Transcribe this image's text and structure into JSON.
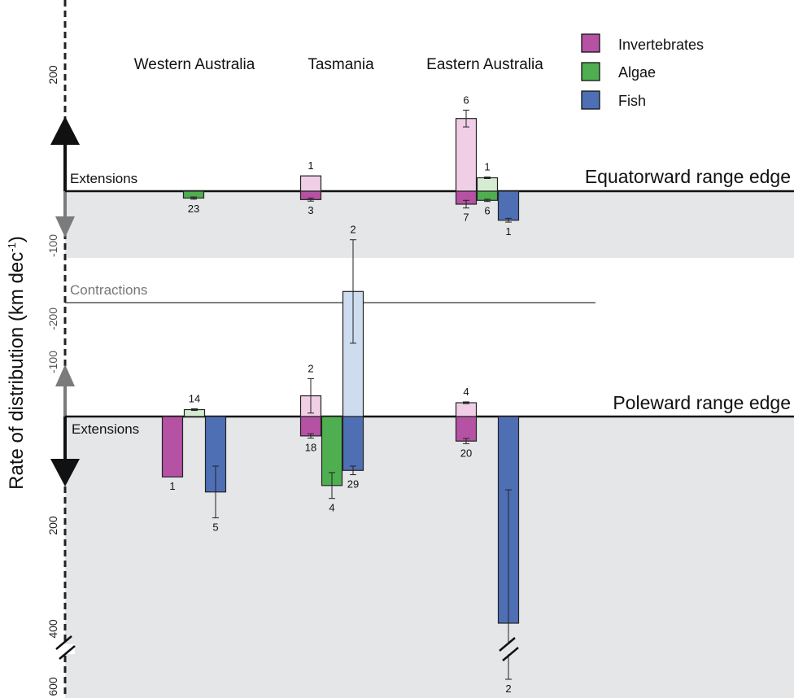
{
  "chart_data": {
    "type": "bar",
    "ylabel": "Rate of distribution (km dec",
    "ylabel_sup": "-1",
    "categories": [
      "Western Australia",
      "Tasmania",
      "Eastern Australia"
    ],
    "legend": [
      {
        "name": "Invertebrates",
        "color": "#b552a3"
      },
      {
        "name": "Algae",
        "color": "#4fae50"
      },
      {
        "name": "Fish",
        "color": "#4f6fb5"
      }
    ],
    "light_colors": {
      "Invertebrates": "#f0cfe6",
      "Algae": "#d6ecd2",
      "Fish": "#cddcef"
    },
    "panels": [
      {
        "name": "Equatorward range edge",
        "extension_label": "Extensions",
        "contraction_label": "Contractions",
        "y_ticks": [
          200,
          -100,
          -200
        ],
        "bars": [
          {
            "category": "Western Australia",
            "group": "Algae",
            "type": "contraction",
            "value": 18,
            "error": 3,
            "n": "23"
          },
          {
            "category": "Tasmania",
            "group": "Invertebrates",
            "type": "extension",
            "value": 40,
            "error": 0,
            "n": "1"
          },
          {
            "category": "Tasmania",
            "group": "Invertebrates",
            "type": "contraction",
            "value": 22,
            "error": 4,
            "n": "3"
          },
          {
            "category": "Eastern Australia",
            "group": "Invertebrates",
            "type": "extension",
            "value": 190,
            "error": 22,
            "n": "6"
          },
          {
            "category": "Eastern Australia",
            "group": "Invertebrates",
            "type": "contraction",
            "value": 34,
            "error": 10,
            "n": "7"
          },
          {
            "category": "Eastern Australia",
            "group": "Algae",
            "type": "extension",
            "value": 35,
            "error": 2,
            "n": "1"
          },
          {
            "category": "Eastern Australia",
            "group": "Algae",
            "type": "contraction",
            "value": 24,
            "error": 3,
            "n": "6"
          },
          {
            "category": "Eastern Australia",
            "group": "Fish",
            "type": "contraction",
            "value": 76,
            "error": 5,
            "n": "1"
          }
        ]
      },
      {
        "name": "Poleward range edge",
        "extension_label": "Extensions",
        "y_ticks": [
          -100,
          200,
          400,
          600
        ],
        "bars": [
          {
            "category": "Western Australia",
            "group": "Invertebrates",
            "type": "extension",
            "value": 140,
            "error": 0,
            "n": "1"
          },
          {
            "category": "Western Australia",
            "group": "Algae",
            "type": "contraction",
            "value": 16,
            "error": 2,
            "n": "14"
          },
          {
            "category": "Western Australia",
            "group": "Fish",
            "type": "extension",
            "value": 175,
            "error": 60,
            "n": "5"
          },
          {
            "category": "Tasmania",
            "group": "Invertebrates",
            "type": "contraction",
            "value": 48,
            "error": 40,
            "n": "2"
          },
          {
            "category": "Tasmania",
            "group": "Invertebrates",
            "type": "extension",
            "value": 45,
            "error": 5,
            "n": "18"
          },
          {
            "category": "Tasmania",
            "group": "Algae",
            "type": "extension",
            "value": 160,
            "error": 30,
            "n": "4"
          },
          {
            "category": "Tasmania",
            "group": "Fish",
            "type": "contraction",
            "value": 290,
            "error": 120,
            "n": "2"
          },
          {
            "category": "Tasmania",
            "group": "Fish",
            "type": "extension",
            "value": 125,
            "error": 10,
            "n": "29"
          },
          {
            "category": "Eastern Australia",
            "group": "Invertebrates",
            "type": "contraction",
            "value": 32,
            "error": 2,
            "n": "4"
          },
          {
            "category": "Eastern Australia",
            "group": "Invertebrates",
            "type": "extension",
            "value": 57,
            "error": 6,
            "n": "20"
          },
          {
            "category": "Eastern Australia",
            "group": "Fish",
            "type": "extension",
            "value": 480,
            "error": 310,
            "n": "2"
          }
        ]
      }
    ]
  }
}
